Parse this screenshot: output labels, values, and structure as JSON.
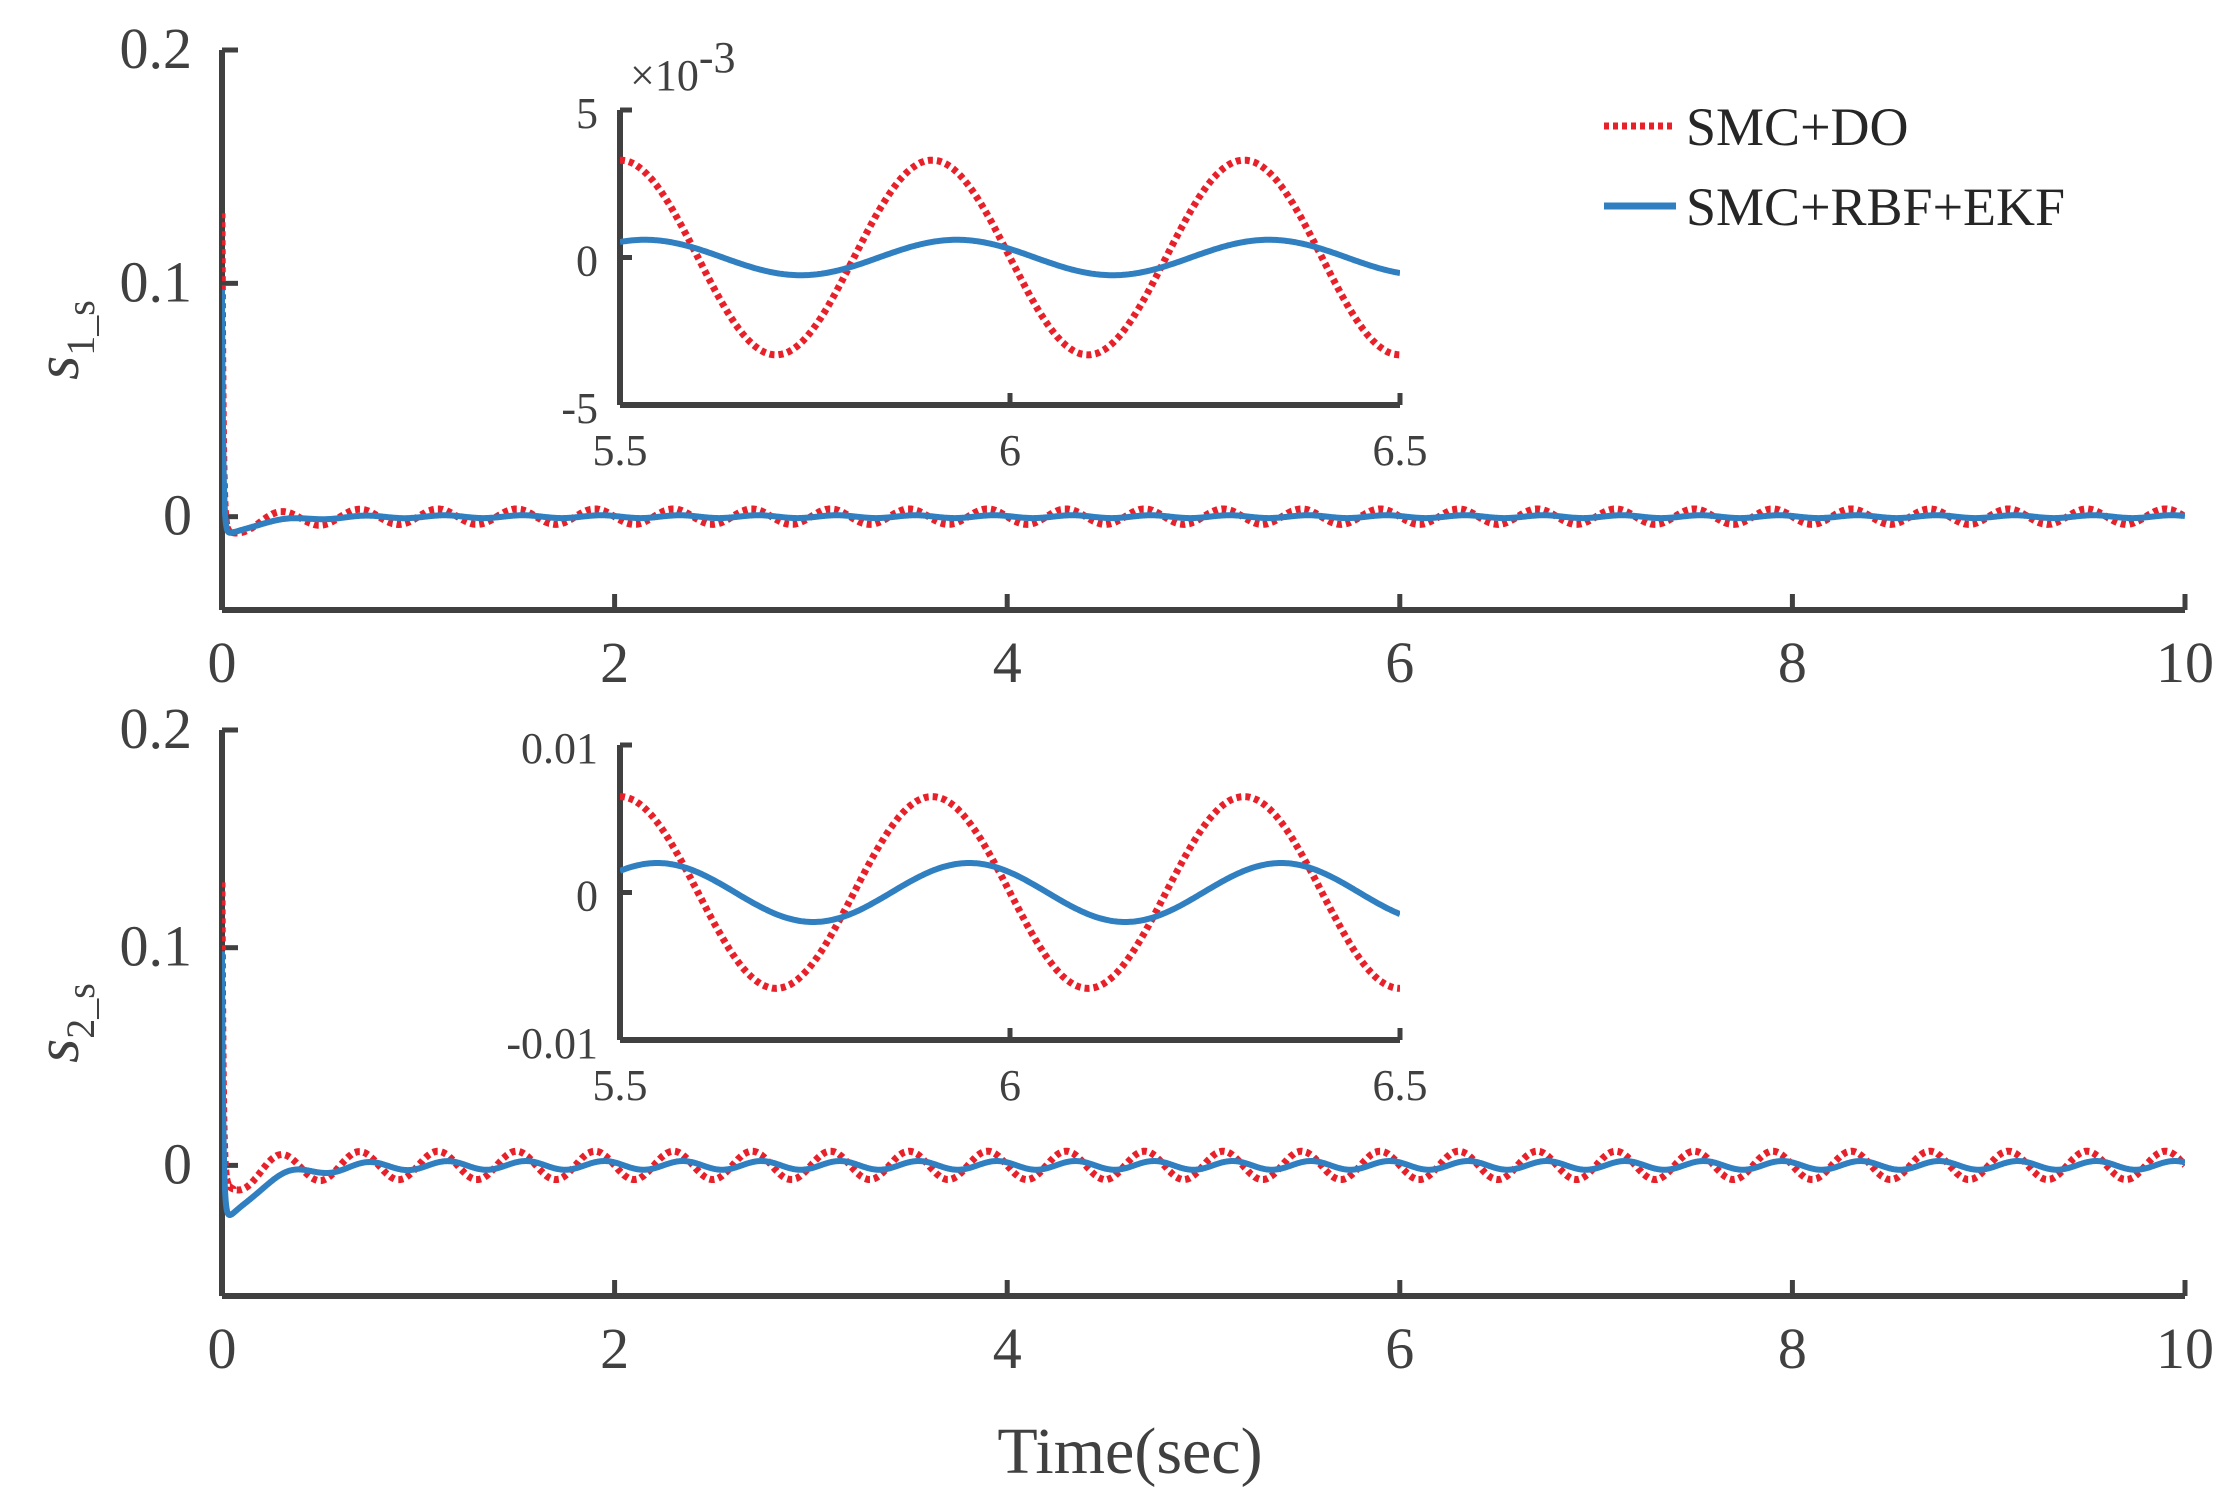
{
  "chart_data": [
    {
      "id": "top",
      "type": "line",
      "ylabel": "s",
      "ylabel_sub": "1_s",
      "xlim": [
        0,
        10
      ],
      "ylim": [
        -0.04,
        0.2
      ],
      "xticks": [
        0,
        2,
        4,
        6,
        8,
        10
      ],
      "yticks": [
        0,
        0.1,
        0.2
      ],
      "xtick_labels": [
        "0",
        "2",
        "4",
        "6",
        "8",
        "10"
      ],
      "ytick_labels": [
        "0",
        "0.1",
        "0.2"
      ],
      "series": [
        {
          "name": "SMC+DO",
          "color": "#e8202a",
          "style": "dotted",
          "peak": 0.13,
          "amp": 0.0033,
          "freq": 2.5,
          "phase": 0,
          "decay_depth": -0.006
        },
        {
          "name": "SMC+RBF+EKF",
          "color": "#2f7fc1",
          "style": "solid",
          "peak": 0.097,
          "amp": 0.0006,
          "freq": 2.5,
          "phase": -0.5,
          "decay_depth": -0.009
        }
      ],
      "inset": {
        "xlim": [
          5.5,
          6.5
        ],
        "ylim": [
          -0.005,
          0.005
        ],
        "xticks": [
          5.5,
          6,
          6.5
        ],
        "yticks": [
          -0.005,
          0,
          0.005
        ],
        "xtick_labels": [
          "5.5",
          "6",
          "6.5"
        ],
        "ytick_labels": [
          "-5",
          "0",
          "5"
        ],
        "exponent_label": "×10",
        "exponent_power": "-3"
      }
    },
    {
      "id": "bottom",
      "type": "line",
      "ylabel": "s",
      "ylabel_sub": "2_s",
      "xlabel": "Time(sec)",
      "xlim": [
        0,
        10
      ],
      "ylim": [
        -0.06,
        0.2
      ],
      "xticks": [
        0,
        2,
        4,
        6,
        8,
        10
      ],
      "yticks": [
        0,
        0.1,
        0.2
      ],
      "xtick_labels": [
        "0",
        "2",
        "4",
        "6",
        "8",
        "10"
      ],
      "ytick_labels": [
        "0",
        "0.1",
        "0.2"
      ],
      "series": [
        {
          "name": "SMC+DO",
          "color": "#e8202a",
          "style": "dotted",
          "peak": 0.13,
          "amp": 0.0065,
          "freq": 2.5,
          "phase": 0,
          "decay_depth": -0.008
        },
        {
          "name": "SMC+RBF+EKF",
          "color": "#2f7fc1",
          "style": "solid",
          "peak": 0.097,
          "amp": 0.002,
          "freq": 2.5,
          "phase": -0.75,
          "decay_depth": -0.03
        }
      ],
      "inset": {
        "xlim": [
          5.5,
          6.5
        ],
        "ylim": [
          -0.01,
          0.01
        ],
        "xticks": [
          5.5,
          6,
          6.5
        ],
        "yticks": [
          -0.01,
          0,
          0.01
        ],
        "xtick_labels": [
          "5.5",
          "6",
          "6.5"
        ],
        "ytick_labels": [
          "-0.01",
          "0",
          "0.01"
        ]
      }
    }
  ],
  "legend": {
    "position": "top-right",
    "entries": [
      "SMC+DO",
      "SMC+RBF+EKF"
    ]
  },
  "colors": {
    "axis": "#404040",
    "smc_do": "#e8202a",
    "smc_rbf_ekf": "#2f7fc1"
  }
}
